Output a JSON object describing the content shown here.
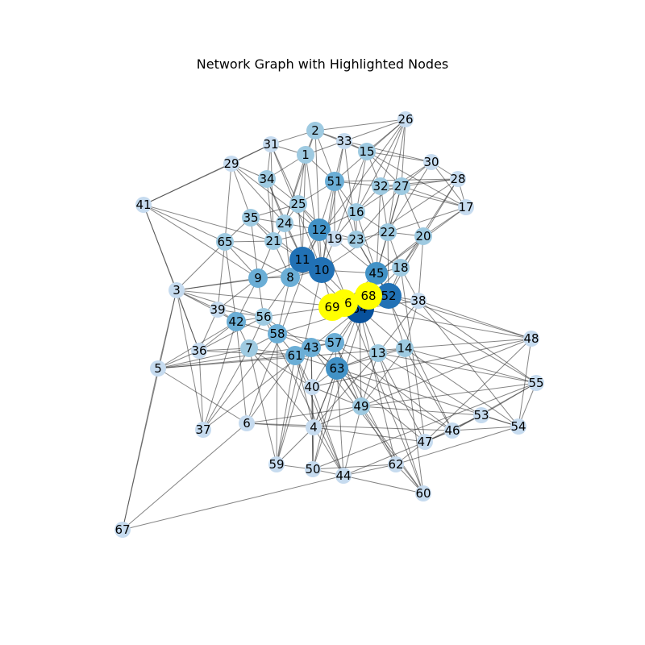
{
  "title": "Network Graph with Highlighted Nodes",
  "colors": {
    "edge": "#333333",
    "highlight": "#ffff00",
    "shade_1": "#c6dbef",
    "shade_2": "#9ecae1",
    "shade_3": "#6baed6",
    "shade_4": "#4292c6",
    "shade_5": "#2171b5",
    "shade_6": "#08519c"
  },
  "nodes": [
    {
      "id": "1",
      "shade": 2
    },
    {
      "id": "2",
      "shade": 2
    },
    {
      "id": "3",
      "shade": 1
    },
    {
      "id": "4",
      "shade": 1
    },
    {
      "id": "5",
      "shade": 1
    },
    {
      "id": "6",
      "shade": 1
    },
    {
      "id": "7",
      "shade": 2
    },
    {
      "id": "8",
      "shade": 3
    },
    {
      "id": "9",
      "shade": 3
    },
    {
      "id": "10",
      "shade": 5
    },
    {
      "id": "11",
      "shade": 5
    },
    {
      "id": "12",
      "shade": 4
    },
    {
      "id": "13",
      "shade": 2
    },
    {
      "id": "14",
      "shade": 2
    },
    {
      "id": "15",
      "shade": 2
    },
    {
      "id": "16",
      "shade": 2
    },
    {
      "id": "17",
      "shade": 1
    },
    {
      "id": "18",
      "shade": 2
    },
    {
      "id": "19",
      "shade": 1
    },
    {
      "id": "20",
      "shade": 2
    },
    {
      "id": "21",
      "shade": 2
    },
    {
      "id": "22",
      "shade": 2
    },
    {
      "id": "23",
      "shade": 2
    },
    {
      "id": "24",
      "shade": 2
    },
    {
      "id": "25",
      "shade": 2
    },
    {
      "id": "26",
      "shade": 1
    },
    {
      "id": "27",
      "shade": 2
    },
    {
      "id": "28",
      "shade": 1
    },
    {
      "id": "29",
      "shade": 1
    },
    {
      "id": "30",
      "shade": 1
    },
    {
      "id": "31",
      "shade": 1
    },
    {
      "id": "32",
      "shade": 2
    },
    {
      "id": "33",
      "shade": 1
    },
    {
      "id": "34",
      "shade": 2
    },
    {
      "id": "35",
      "shade": 2
    },
    {
      "id": "36",
      "shade": 1
    },
    {
      "id": "37",
      "shade": 1
    },
    {
      "id": "38",
      "shade": 1
    },
    {
      "id": "39",
      "shade": 1
    },
    {
      "id": "40",
      "shade": 1
    },
    {
      "id": "41",
      "shade": 1
    },
    {
      "id": "42",
      "shade": 3
    },
    {
      "id": "43",
      "shade": 3
    },
    {
      "id": "44",
      "shade": 1
    },
    {
      "id": "45",
      "shade": 4
    },
    {
      "id": "46",
      "shade": 1
    },
    {
      "id": "47",
      "shade": 1
    },
    {
      "id": "48",
      "shade": 1
    },
    {
      "id": "49",
      "shade": 2
    },
    {
      "id": "50",
      "shade": 1
    },
    {
      "id": "51",
      "shade": 3
    },
    {
      "id": "52",
      "shade": 5
    },
    {
      "id": "53",
      "shade": 1
    },
    {
      "id": "54",
      "shade": 1
    },
    {
      "id": "55",
      "shade": 1
    },
    {
      "id": "56",
      "shade": 2
    },
    {
      "id": "57",
      "shade": 3
    },
    {
      "id": "58",
      "shade": 3
    },
    {
      "id": "59",
      "shade": 1
    },
    {
      "id": "60",
      "shade": 1
    },
    {
      "id": "61",
      "shade": 3
    },
    {
      "id": "62",
      "shade": 1
    },
    {
      "id": "63",
      "shade": 4
    },
    {
      "id": "64",
      "shade": 6
    },
    {
      "id": "65",
      "shade": 2
    },
    {
      "id": "66",
      "shade": 0
    },
    {
      "id": "67",
      "shade": 1
    },
    {
      "id": "68",
      "shade": 0
    },
    {
      "id": "69",
      "shade": 0
    }
  ],
  "highlighted": [
    "66",
    "68",
    "69"
  ],
  "edges": [
    [
      "67",
      "5"
    ],
    [
      "67",
      "6"
    ],
    [
      "67",
      "44"
    ],
    [
      "67",
      "3"
    ],
    [
      "41",
      "3"
    ],
    [
      "41",
      "65"
    ],
    [
      "41",
      "29"
    ],
    [
      "41",
      "36"
    ],
    [
      "41",
      "9"
    ],
    [
      "41",
      "31"
    ],
    [
      "41",
      "21"
    ],
    [
      "3",
      "5"
    ],
    [
      "3",
      "36"
    ],
    [
      "3",
      "37"
    ],
    [
      "3",
      "39"
    ],
    [
      "3",
      "42"
    ],
    [
      "3",
      "9"
    ],
    [
      "3",
      "65"
    ],
    [
      "3",
      "56"
    ],
    [
      "3",
      "10"
    ],
    [
      "3",
      "64"
    ],
    [
      "5",
      "36"
    ],
    [
      "5",
      "6"
    ],
    [
      "5",
      "42"
    ],
    [
      "5",
      "7"
    ],
    [
      "5",
      "14"
    ],
    [
      "5",
      "61"
    ],
    [
      "5",
      "57"
    ],
    [
      "37",
      "36"
    ],
    [
      "37",
      "7"
    ],
    [
      "37",
      "58"
    ],
    [
      "37",
      "42"
    ],
    [
      "37",
      "43"
    ],
    [
      "6",
      "4"
    ],
    [
      "6",
      "42"
    ],
    [
      "6",
      "61"
    ],
    [
      "6",
      "49"
    ],
    [
      "6",
      "46"
    ],
    [
      "6",
      "12"
    ],
    [
      "26",
      "2"
    ],
    [
      "26",
      "33"
    ],
    [
      "26",
      "51"
    ],
    [
      "26",
      "16"
    ],
    [
      "26",
      "22"
    ],
    [
      "26",
      "27"
    ],
    [
      "26",
      "15"
    ],
    [
      "26",
      "32"
    ],
    [
      "26",
      "11"
    ],
    [
      "17",
      "27"
    ],
    [
      "17",
      "22"
    ],
    [
      "17",
      "45"
    ],
    [
      "17",
      "20"
    ],
    [
      "17",
      "30"
    ],
    [
      "17",
      "15"
    ],
    [
      "17",
      "28"
    ],
    [
      "17",
      "32"
    ],
    [
      "28",
      "27"
    ],
    [
      "28",
      "20"
    ],
    [
      "28",
      "18"
    ],
    [
      "28",
      "51"
    ],
    [
      "28",
      "30"
    ],
    [
      "28",
      "32"
    ],
    [
      "28",
      "10"
    ],
    [
      "30",
      "15"
    ],
    [
      "30",
      "33"
    ],
    [
      "30",
      "27"
    ],
    [
      "30",
      "22"
    ],
    [
      "30",
      "16"
    ],
    [
      "48",
      "52"
    ],
    [
      "48",
      "64"
    ],
    [
      "48",
      "38"
    ],
    [
      "48",
      "49"
    ],
    [
      "48",
      "14"
    ],
    [
      "48",
      "54"
    ],
    [
      "48",
      "47"
    ],
    [
      "48",
      "40"
    ],
    [
      "55",
      "52"
    ],
    [
      "55",
      "38"
    ],
    [
      "55",
      "13"
    ],
    [
      "55",
      "53"
    ],
    [
      "55",
      "54"
    ],
    [
      "55",
      "46"
    ],
    [
      "55",
      "14"
    ],
    [
      "55",
      "50"
    ],
    [
      "55",
      "49"
    ],
    [
      "53",
      "49"
    ],
    [
      "53",
      "47"
    ],
    [
      "53",
      "46"
    ],
    [
      "53",
      "54"
    ],
    [
      "53",
      "13"
    ],
    [
      "54",
      "46"
    ],
    [
      "54",
      "14"
    ],
    [
      "54",
      "38"
    ],
    [
      "54",
      "63"
    ],
    [
      "54",
      "62"
    ],
    [
      "46",
      "47"
    ],
    [
      "46",
      "63"
    ],
    [
      "46",
      "57"
    ],
    [
      "46",
      "45"
    ],
    [
      "46",
      "44"
    ],
    [
      "46",
      "14"
    ],
    [
      "47",
      "13"
    ],
    [
      "47",
      "43"
    ],
    [
      "47",
      "4"
    ],
    [
      "47",
      "18"
    ],
    [
      "47",
      "62"
    ],
    [
      "60",
      "62"
    ],
    [
      "60",
      "13"
    ],
    [
      "60",
      "14"
    ],
    [
      "60",
      "44"
    ],
    [
      "60",
      "49"
    ],
    [
      "60",
      "43"
    ],
    [
      "60",
      "12"
    ],
    [
      "62",
      "44"
    ],
    [
      "62",
      "50"
    ],
    [
      "62",
      "57"
    ],
    [
      "62",
      "64"
    ],
    [
      "62",
      "63"
    ],
    [
      "44",
      "50"
    ],
    [
      "44",
      "4"
    ],
    [
      "44",
      "40"
    ],
    [
      "44",
      "49"
    ],
    [
      "44",
      "63"
    ],
    [
      "44",
      "61"
    ],
    [
      "44",
      "56"
    ],
    [
      "50",
      "59"
    ],
    [
      "50",
      "4"
    ],
    [
      "50",
      "40"
    ],
    [
      "50",
      "63"
    ],
    [
      "50",
      "43"
    ],
    [
      "50",
      "68"
    ],
    [
      "59",
      "4"
    ],
    [
      "59",
      "7"
    ],
    [
      "59",
      "58"
    ],
    [
      "59",
      "61"
    ],
    [
      "59",
      "10"
    ],
    [
      "59",
      "43"
    ],
    [
      "4",
      "40"
    ],
    [
      "4",
      "49"
    ],
    [
      "4",
      "63"
    ],
    [
      "4",
      "61"
    ],
    [
      "4",
      "7"
    ],
    [
      "4",
      "13"
    ],
    [
      "4",
      "64"
    ],
    [
      "2",
      "31"
    ],
    [
      "2",
      "33"
    ],
    [
      "2",
      "1"
    ],
    [
      "2",
      "15"
    ],
    [
      "2",
      "51"
    ],
    [
      "2",
      "24"
    ],
    [
      "2",
      "12"
    ],
    [
      "31",
      "29"
    ],
    [
      "31",
      "34"
    ],
    [
      "31",
      "1"
    ],
    [
      "31",
      "25"
    ],
    [
      "31",
      "21"
    ],
    [
      "31",
      "10"
    ],
    [
      "29",
      "34"
    ],
    [
      "29",
      "35"
    ],
    [
      "29",
      "65"
    ],
    [
      "29",
      "24"
    ],
    [
      "29",
      "12"
    ],
    [
      "33",
      "15"
    ],
    [
      "33",
      "51"
    ],
    [
      "33",
      "23"
    ],
    [
      "33",
      "1"
    ],
    [
      "33",
      "10"
    ],
    [
      "15",
      "32"
    ],
    [
      "15",
      "27"
    ],
    [
      "15",
      "16"
    ],
    [
      "15",
      "19"
    ],
    [
      "1",
      "34"
    ],
    [
      "1",
      "51"
    ],
    [
      "1",
      "25"
    ],
    [
      "1",
      "24"
    ],
    [
      "1",
      "11"
    ],
    [
      "1",
      "10"
    ],
    [
      "34",
      "25"
    ],
    [
      "34",
      "24"
    ],
    [
      "34",
      "21"
    ],
    [
      "34",
      "11"
    ],
    [
      "51",
      "32"
    ],
    [
      "51",
      "16"
    ],
    [
      "51",
      "25"
    ],
    [
      "51",
      "12"
    ],
    [
      "51",
      "19"
    ],
    [
      "51",
      "23"
    ],
    [
      "51",
      "10"
    ],
    [
      "32",
      "27"
    ],
    [
      "32",
      "16"
    ],
    [
      "32",
      "22"
    ],
    [
      "32",
      "45"
    ],
    [
      "27",
      "22"
    ],
    [
      "27",
      "20"
    ],
    [
      "27",
      "23"
    ],
    [
      "27",
      "45"
    ],
    [
      "25",
      "24"
    ],
    [
      "25",
      "35"
    ],
    [
      "25",
      "12"
    ],
    [
      "25",
      "19"
    ],
    [
      "25",
      "11"
    ],
    [
      "35",
      "24"
    ],
    [
      "35",
      "65"
    ],
    [
      "35",
      "21"
    ],
    [
      "35",
      "9"
    ],
    [
      "35",
      "11"
    ],
    [
      "24",
      "21"
    ],
    [
      "24",
      "12"
    ],
    [
      "24",
      "11"
    ],
    [
      "24",
      "8"
    ],
    [
      "16",
      "23"
    ],
    [
      "16",
      "19"
    ],
    [
      "16",
      "12"
    ],
    [
      "16",
      "22"
    ],
    [
      "16",
      "45"
    ],
    [
      "22",
      "20"
    ],
    [
      "22",
      "23"
    ],
    [
      "22",
      "18"
    ],
    [
      "22",
      "45"
    ],
    [
      "22",
      "52"
    ],
    [
      "20",
      "18"
    ],
    [
      "20",
      "45"
    ],
    [
      "20",
      "52"
    ],
    [
      "20",
      "38"
    ],
    [
      "65",
      "21"
    ],
    [
      "65",
      "9"
    ],
    [
      "65",
      "39"
    ],
    [
      "65",
      "42"
    ],
    [
      "65",
      "8"
    ],
    [
      "21",
      "12"
    ],
    [
      "21",
      "11"
    ],
    [
      "21",
      "9"
    ],
    [
      "21",
      "8"
    ],
    [
      "12",
      "19"
    ],
    [
      "12",
      "11"
    ],
    [
      "12",
      "10"
    ],
    [
      "12",
      "23"
    ],
    [
      "19",
      "23"
    ],
    [
      "19",
      "10"
    ],
    [
      "19",
      "45"
    ],
    [
      "23",
      "45"
    ],
    [
      "23",
      "18"
    ],
    [
      "23",
      "52"
    ],
    [
      "11",
      "10"
    ],
    [
      "11",
      "8"
    ],
    [
      "11",
      "9"
    ],
    [
      "11",
      "66"
    ],
    [
      "10",
      "8"
    ],
    [
      "10",
      "45"
    ],
    [
      "10",
      "69"
    ],
    [
      "10",
      "64"
    ],
    [
      "45",
      "18"
    ],
    [
      "45",
      "52"
    ],
    [
      "45",
      "68"
    ],
    [
      "45",
      "66"
    ],
    [
      "18",
      "52"
    ],
    [
      "18",
      "38"
    ],
    [
      "18",
      "64"
    ],
    [
      "9",
      "8"
    ],
    [
      "9",
      "39"
    ],
    [
      "9",
      "42"
    ],
    [
      "9",
      "56"
    ],
    [
      "8",
      "56"
    ],
    [
      "8",
      "58"
    ],
    [
      "8",
      "69"
    ],
    [
      "39",
      "42"
    ],
    [
      "39",
      "36"
    ],
    [
      "39",
      "56"
    ],
    [
      "42",
      "36"
    ],
    [
      "42",
      "56"
    ],
    [
      "42",
      "7"
    ],
    [
      "42",
      "58"
    ],
    [
      "36",
      "7"
    ],
    [
      "36",
      "56"
    ],
    [
      "36",
      "61"
    ],
    [
      "56",
      "58"
    ],
    [
      "56",
      "7"
    ],
    [
      "56",
      "43"
    ],
    [
      "56",
      "69"
    ],
    [
      "7",
      "58"
    ],
    [
      "7",
      "61"
    ],
    [
      "7",
      "40"
    ],
    [
      "58",
      "43"
    ],
    [
      "58",
      "61"
    ],
    [
      "58",
      "57"
    ],
    [
      "58",
      "64"
    ],
    [
      "61",
      "43"
    ],
    [
      "61",
      "63"
    ],
    [
      "61",
      "40"
    ],
    [
      "43",
      "57"
    ],
    [
      "43",
      "63"
    ],
    [
      "43",
      "40"
    ],
    [
      "43",
      "64"
    ],
    [
      "57",
      "13"
    ],
    [
      "57",
      "63"
    ],
    [
      "57",
      "64"
    ],
    [
      "57",
      "49"
    ],
    [
      "63",
      "40"
    ],
    [
      "63",
      "49"
    ],
    [
      "63",
      "13"
    ],
    [
      "63",
      "14"
    ],
    [
      "40",
      "49"
    ],
    [
      "40",
      "64"
    ],
    [
      "49",
      "13"
    ],
    [
      "49",
      "14"
    ],
    [
      "49",
      "64"
    ],
    [
      "13",
      "14"
    ],
    [
      "13",
      "64"
    ],
    [
      "13",
      "38"
    ],
    [
      "14",
      "38"
    ],
    [
      "14",
      "64"
    ],
    [
      "14",
      "52"
    ],
    [
      "52",
      "64"
    ],
    [
      "52",
      "38"
    ],
    [
      "52",
      "68"
    ],
    [
      "38",
      "64"
    ],
    [
      "64",
      "68"
    ],
    [
      "64",
      "66"
    ],
    [
      "64",
      "69"
    ],
    [
      "66",
      "68"
    ],
    [
      "66",
      "69"
    ],
    [
      "68",
      "69"
    ]
  ]
}
